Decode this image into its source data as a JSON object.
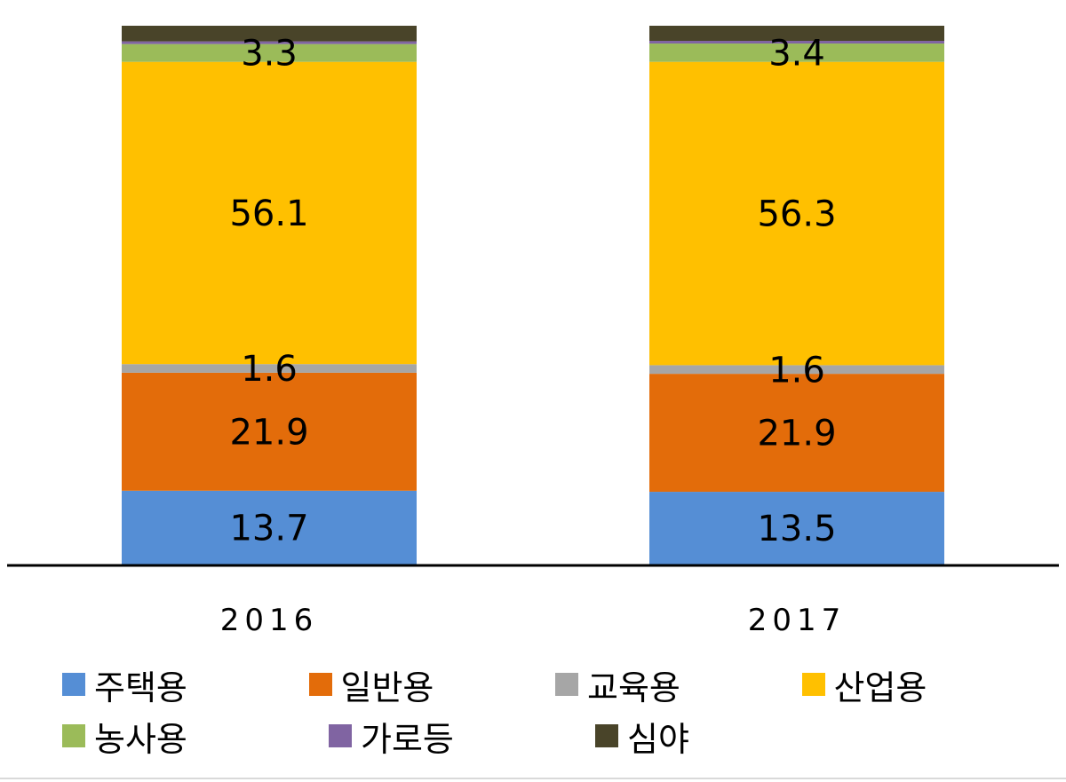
{
  "chart_data": {
    "type": "bar",
    "stacked": true,
    "categories": [
      "2016",
      "2017"
    ],
    "series": [
      {
        "name": "주택용",
        "color": "#558ED5",
        "values": [
          13.7,
          13.5
        ],
        "labels": [
          "13.7",
          "13.5"
        ]
      },
      {
        "name": "일반용",
        "color": "#E36C0A",
        "values": [
          21.9,
          21.9
        ],
        "labels": [
          "21.9",
          "21.9"
        ]
      },
      {
        "name": "교육용",
        "color": "#A6A6A6",
        "values": [
          1.6,
          1.6
        ],
        "labels": [
          "1.6",
          "1.6"
        ]
      },
      {
        "name": "산업용",
        "color": "#FFC000",
        "values": [
          56.1,
          56.3
        ],
        "labels": [
          "56.1",
          "56.3"
        ]
      },
      {
        "name": "농사용",
        "color": "#9BBB59",
        "values": [
          3.3,
          3.4
        ],
        "labels": [
          "3.3",
          "3.4"
        ]
      },
      {
        "name": "가로등",
        "color": "#8064A2",
        "values": [
          0.5,
          0.5
        ],
        "labels": [
          "",
          ""
        ]
      },
      {
        "name": "심야",
        "color": "#494429",
        "values": [
          2.9,
          2.8
        ],
        "labels": [
          "",
          ""
        ]
      }
    ],
    "ylim": [
      0,
      100
    ],
    "grid": false,
    "legend_position": "bottom",
    "title": "",
    "xlabel": "",
    "ylabel": ""
  }
}
